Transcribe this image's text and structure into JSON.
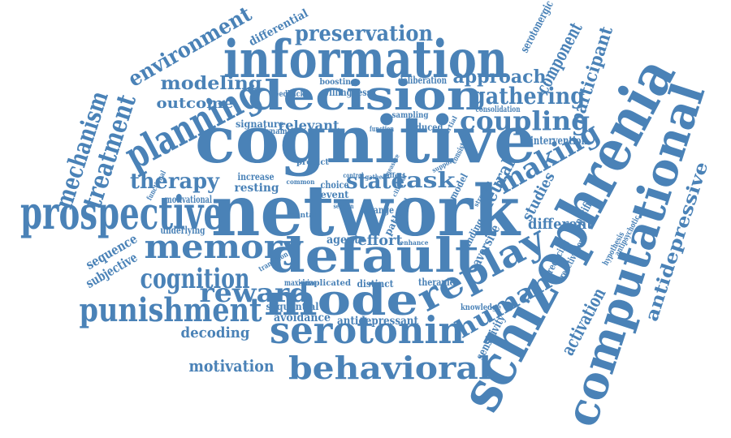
{
  "color": "#4a82b7",
  "words": [
    "information",
    "cognitive",
    "network",
    "default",
    "decision",
    "mode",
    "schizophrenia",
    "computational",
    "prospective",
    "planning",
    "memory",
    "serotonin",
    "behavioral",
    "punishment",
    "replay",
    "cognition",
    "making",
    "coupling",
    "gathering",
    "reward",
    "preservation",
    "environment",
    "treatment",
    "mechanism",
    "antidepressive",
    "human",
    "therapy",
    "task",
    "state",
    "modeling",
    "approach",
    "outcome",
    "relevant",
    "signature",
    "component",
    "participant",
    "serotonergic",
    "differential",
    "motivation",
    "decoding",
    "neural",
    "studies",
    "different",
    "activation",
    "sequence",
    "subjective",
    "avoidance",
    "sequential",
    "antidepressant",
    "intervention",
    "knowledge",
    "sensitivity",
    "aversive",
    "resting",
    "increase",
    "motivational",
    "underlying",
    "agent",
    "effort",
    "choice",
    "event",
    "finding",
    "model",
    "range",
    "path",
    "related",
    "implicated",
    "distinct",
    "therapies",
    "maximize",
    "transition",
    "reducing",
    "reactivation",
    "antipsychotic",
    "hypothesis",
    "specific",
    "willingness",
    "boosting",
    "deliberation",
    "consolidation",
    "feedback",
    "sampling",
    "reduced",
    "dynamic",
    "function",
    "predict",
    "consistent",
    "functional",
    "common",
    "mental",
    "strength",
    "control",
    "gather",
    "affect",
    "enhance",
    "support",
    "partial",
    "measure",
    "clinical",
    "session"
  ]
}
